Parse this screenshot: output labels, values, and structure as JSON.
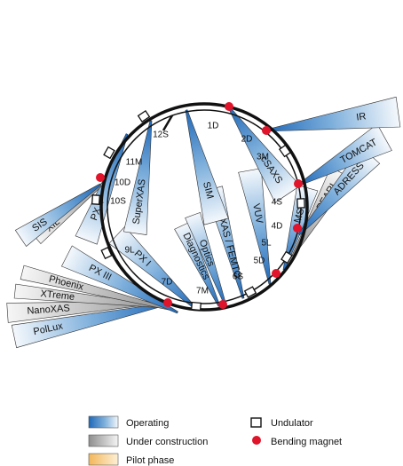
{
  "colors": {
    "operating": "#1f68b8",
    "construction": "#8e8e8e",
    "pilot": "#f2b75a",
    "magnet": "#e0142a",
    "ring": "#111111"
  },
  "beamlines": [
    {
      "label": "PolLux",
      "status": "operating"
    },
    {
      "label": "NanoXAS",
      "status": "construction"
    },
    {
      "label": "XTreme",
      "status": "construction"
    },
    {
      "label": "Phoenix",
      "status": "construction"
    },
    {
      "label": "PX III",
      "status": "operating"
    },
    {
      "label": "PX I",
      "status": "operating"
    },
    {
      "label": "Diagnostics",
      "status": "operating"
    },
    {
      "label": "Optics",
      "status": "operating"
    },
    {
      "label": "MicroXAS / FEMTO",
      "status": "operating"
    },
    {
      "label": "VUV",
      "status": "operating"
    },
    {
      "label": "MS",
      "status": "operating"
    },
    {
      "label": "PEARL",
      "status": "construction"
    },
    {
      "label": "ADRESS",
      "status": "operating"
    },
    {
      "label": "TOMCAT",
      "status": "operating"
    },
    {
      "label": "IR",
      "status": "operating"
    },
    {
      "label": "cSAXS",
      "status": "operating"
    },
    {
      "label": "SIM",
      "status": "operating"
    },
    {
      "label": "SuperXAS",
      "status": "operating"
    },
    {
      "label": "PX II",
      "status": "operating"
    },
    {
      "label": "XIL",
      "status": "construction"
    },
    {
      "label": "SIS",
      "status": "operating"
    }
  ],
  "sectors": [
    "1D",
    "2D",
    "3M",
    "4S",
    "4D",
    "5L",
    "5D",
    "6S",
    "7M",
    "7D",
    "9L",
    "10S",
    "10D",
    "11M",
    "12S"
  ],
  "legend": {
    "operating": "Operating",
    "construction": "Under construction",
    "pilot": "Pilot phase",
    "undulator": "Undulator",
    "magnet": "Bending magnet"
  }
}
